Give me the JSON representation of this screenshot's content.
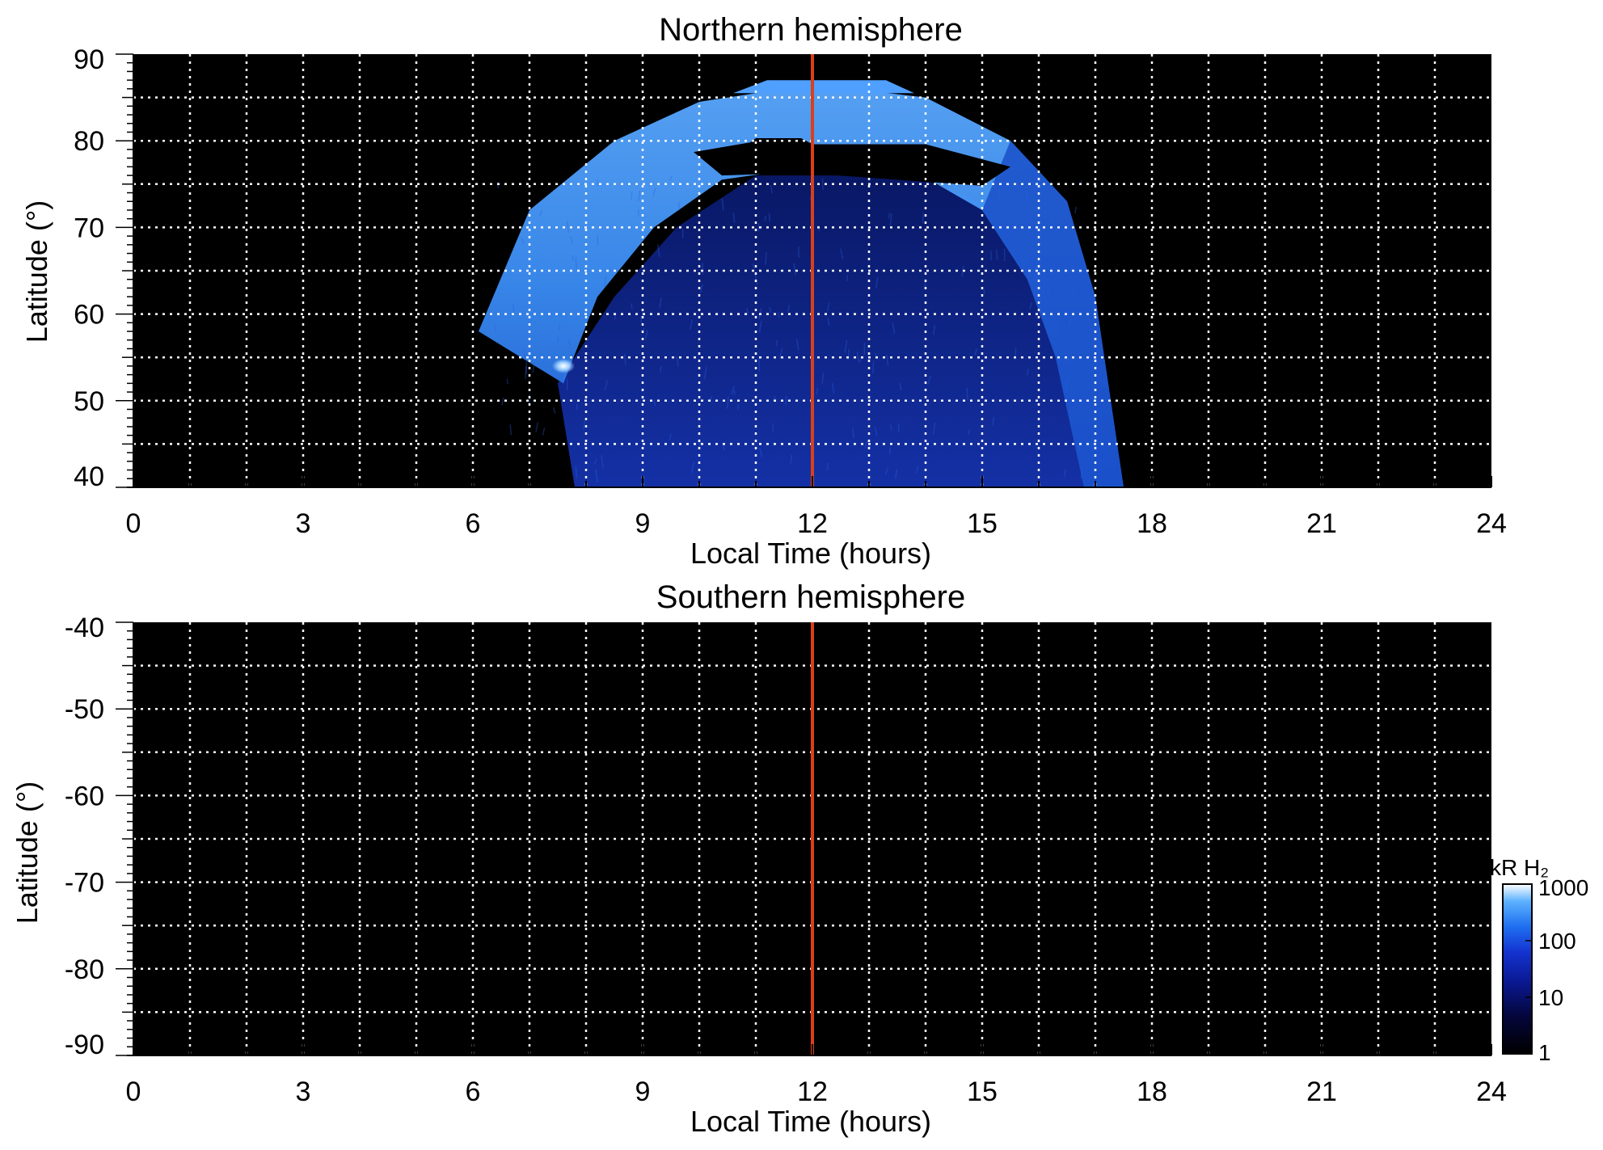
{
  "colors": {
    "background_plot": "#000000",
    "grid": "#ffffff",
    "noon_line": "#d9401a",
    "colormap": [
      "#000000",
      "#04063a",
      "#0a1890",
      "#1433d0",
      "#1f6ff0",
      "#5db2ff",
      "#ffffff"
    ]
  },
  "colorbar": {
    "unit_label": "kR H₂",
    "scale": "log",
    "range": [
      1,
      1000
    ],
    "ticks": [
      "1000",
      "100",
      "10",
      "1"
    ]
  },
  "chart_data": [
    {
      "type": "heatmap",
      "title": "Northern hemisphere",
      "xlabel": "Local Time (hours)",
      "ylabel": "Latitude (°)",
      "xlim": [
        0,
        24
      ],
      "ylim": [
        40,
        90
      ],
      "xticks": [
        0,
        3,
        6,
        9,
        12,
        15,
        18,
        21,
        24
      ],
      "yticks": [
        40,
        50,
        60,
        70,
        80,
        90
      ],
      "grid": true,
      "grid_x_step_hours": 1,
      "grid_y_step_deg": 5,
      "reference_line_x": 12,
      "colorscale": "log",
      "color_range_kR": [
        1,
        1000
      ],
      "features": {
        "auroral_oval": {
          "description_points_lt_lat": [
            [
              6.1,
              58
            ],
            [
              7,
              72
            ],
            [
              8.5,
              80
            ],
            [
              10,
              84.5
            ],
            [
              12,
              86.5
            ],
            [
              14,
              85
            ],
            [
              15.5,
              80
            ],
            [
              16.5,
              73
            ],
            [
              17,
              62
            ],
            [
              17.5,
              40
            ]
          ],
          "peak_brightness_kR": 300
        },
        "polar_cap_gap": {
          "lt_range": [
            9.8,
            15.5
          ],
          "lat_range": [
            76,
            80
          ]
        },
        "bright_spot": {
          "lt": 7.6,
          "lat": 54,
          "brightness_kR": 1000
        },
        "diffuse_region": {
          "lt_range": [
            7.5,
            17.5
          ],
          "lat_range": [
            40,
            76
          ],
          "typical_kR": [
            3,
            20
          ]
        }
      }
    },
    {
      "type": "heatmap",
      "title": "Southern hemisphere",
      "xlabel": "Local Time (hours)",
      "ylabel": "Latitude (°)",
      "xlim": [
        0,
        24
      ],
      "ylim": [
        -90,
        -40
      ],
      "xticks": [
        0,
        3,
        6,
        9,
        12,
        15,
        18,
        21,
        24
      ],
      "yticks": [
        -40,
        -50,
        -60,
        -70,
        -80,
        -90
      ],
      "grid": true,
      "grid_x_step_hours": 1,
      "grid_y_step_deg": 5,
      "reference_line_x": 12,
      "colorscale": "log",
      "color_range_kR": [
        1,
        1000
      ],
      "features": {}
    }
  ]
}
